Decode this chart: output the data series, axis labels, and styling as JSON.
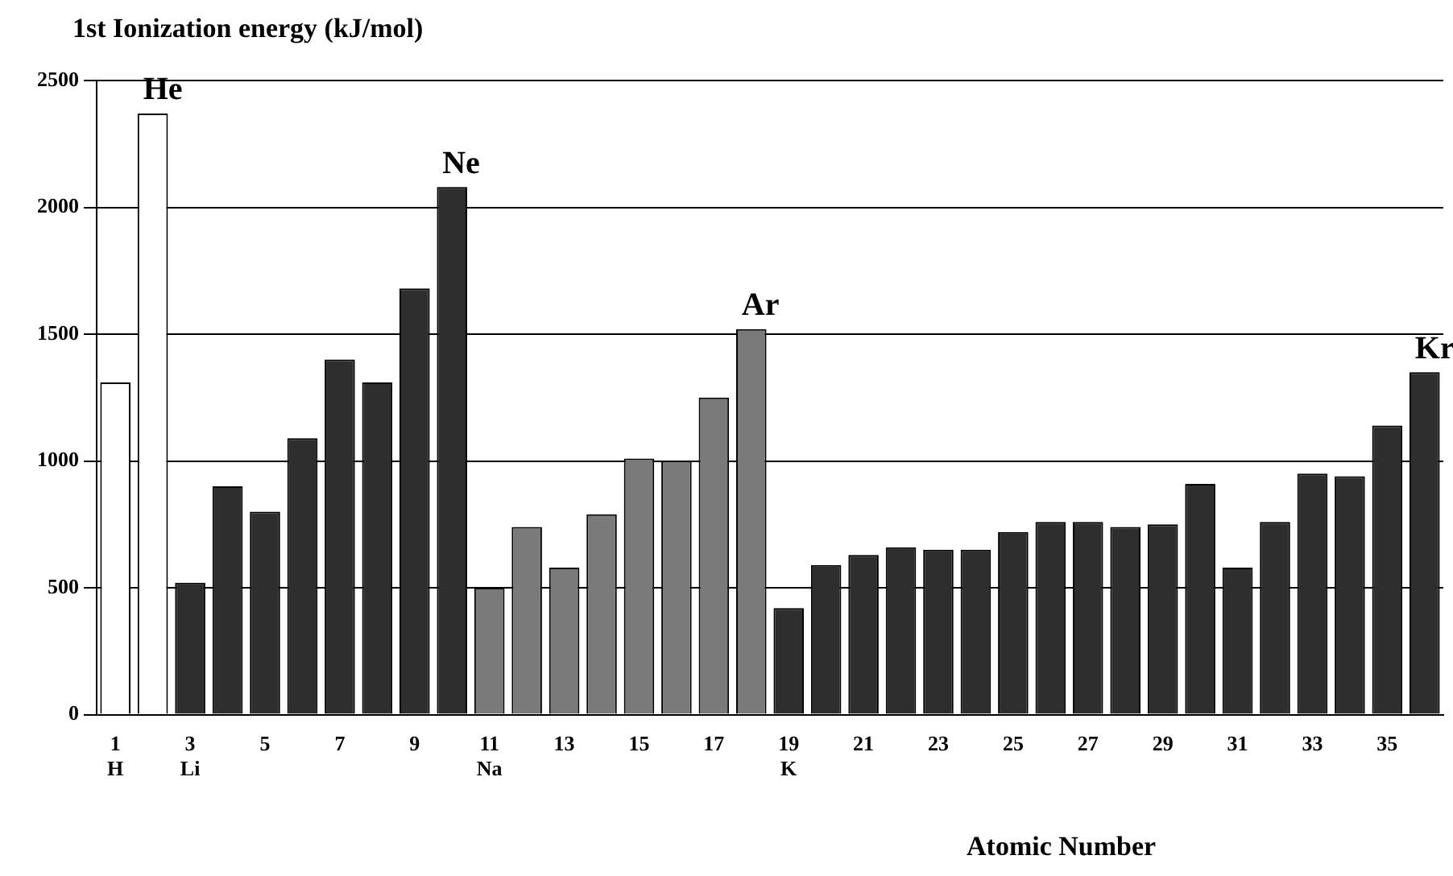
{
  "chart_data": {
    "type": "bar",
    "title": "1st Ionization energy (kJ/mol)",
    "xlabel": "Atomic Number",
    "categories": [
      "1\nH",
      null,
      "3\nLi",
      null,
      "5",
      null,
      "7",
      null,
      "9",
      null,
      "11\nNa",
      null,
      "13",
      null,
      "15",
      null,
      "17",
      null,
      "19\nK",
      null,
      "21",
      null,
      "23",
      null,
      "25",
      null,
      "27",
      null,
      "29",
      null,
      "31",
      null,
      "33",
      null,
      "35",
      null
    ],
    "values": [
      1310,
      2370,
      520,
      900,
      800,
      1090,
      1400,
      1310,
      1680,
      2080,
      500,
      740,
      580,
      790,
      1010,
      1000,
      1250,
      1520,
      420,
      590,
      630,
      660,
      650,
      650,
      720,
      760,
      760,
      740,
      750,
      910,
      580,
      760,
      950,
      940,
      1140,
      1350
    ],
    "colors": [
      "#ffffff",
      "#ffffff",
      "#2e2e2e",
      "#2e2e2e",
      "#2e2e2e",
      "#2e2e2e",
      "#2e2e2e",
      "#2e2e2e",
      "#2e2e2e",
      "#2e2e2e",
      "#7a7a7a",
      "#7a7a7a",
      "#7a7a7a",
      "#7a7a7a",
      "#7a7a7a",
      "#7a7a7a",
      "#7a7a7a",
      "#7a7a7a",
      "#2e2e2e",
      "#2e2e2e",
      "#2e2e2e",
      "#2e2e2e",
      "#2e2e2e",
      "#2e2e2e",
      "#2e2e2e",
      "#2e2e2e",
      "#2e2e2e",
      "#2e2e2e",
      "#2e2e2e",
      "#2e2e2e",
      "#2e2e2e",
      "#2e2e2e",
      "#2e2e2e",
      "#2e2e2e",
      "#2e2e2e",
      "#2e2e2e"
    ],
    "value_labels": [
      null,
      "He",
      null,
      null,
      null,
      null,
      null,
      null,
      null,
      "Ne",
      null,
      null,
      null,
      null,
      null,
      null,
      null,
      "Ar",
      null,
      null,
      null,
      null,
      null,
      null,
      null,
      null,
      null,
      null,
      null,
      null,
      null,
      null,
      null,
      null,
      null,
      "Kr"
    ],
    "ylim": [
      0,
      2500
    ],
    "yticks": [
      0,
      500,
      1000,
      1500,
      2000,
      2500
    ],
    "grid": "y",
    "legend": false
  }
}
